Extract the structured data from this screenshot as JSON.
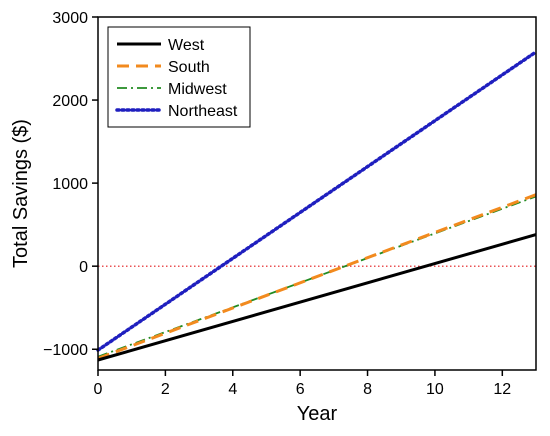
{
  "chart_data": {
    "type": "line",
    "xlabel": "Year",
    "ylabel": "Total Savings ($)",
    "xlim": [
      0,
      13
    ],
    "ylim": [
      -1250,
      3000
    ],
    "x_ticks": [
      0,
      2,
      4,
      6,
      8,
      10,
      12
    ],
    "x_tick_labels": [
      "0",
      "2",
      "4",
      "6",
      "8",
      "10",
      "12"
    ],
    "y_ticks": [
      -1000,
      0,
      1000,
      2000,
      3000
    ],
    "y_tick_labels": [
      "−1000",
      "0",
      "1000",
      "2000",
      "3000"
    ],
    "reference_line": {
      "y": 0,
      "color": "#e31a1c",
      "style": "dotted"
    },
    "legend_position": "top-left",
    "grid": false,
    "series": [
      {
        "name": "West",
        "color": "#000000",
        "style": "solid",
        "x": [
          0,
          13
        ],
        "y": [
          -1130,
          380
        ]
      },
      {
        "name": "South",
        "color": "#f28a1e",
        "style": "dashed",
        "x": [
          0,
          13
        ],
        "y": [
          -1110,
          860
        ]
      },
      {
        "name": "Midwest",
        "color": "#228b22",
        "style": "dashdot",
        "x": [
          0,
          13
        ],
        "y": [
          -1090,
          840
        ]
      },
      {
        "name": "Northeast",
        "color": "#1f1fbf",
        "style": "dotted",
        "x": [
          0,
          13
        ],
        "y": [
          -1010,
          2580
        ]
      }
    ]
  }
}
